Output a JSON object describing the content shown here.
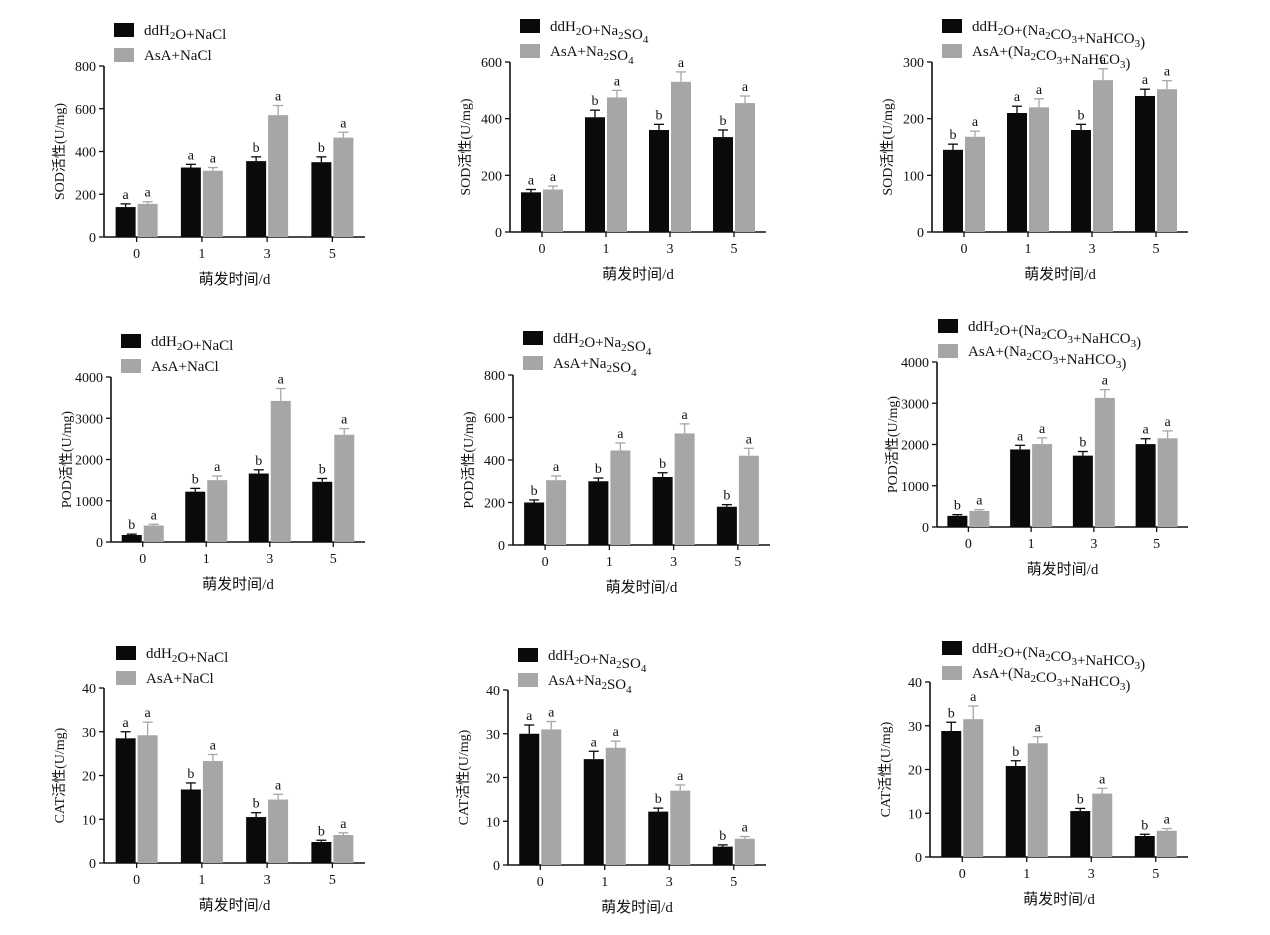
{
  "colors": {
    "black_bar": "#0a0a0a",
    "gray_bar": "#a6a6a6",
    "axis": "#111111"
  },
  "chart_data": [
    {
      "id": "sod-nacl",
      "type": "bar",
      "categories": [
        "0",
        "1",
        "3",
        "5"
      ],
      "xlabel": "萌发时间/d",
      "ylabel": "SOD活性(U/mg)",
      "ylim": [
        0,
        800
      ],
      "yticks": [
        "0",
        "200",
        "400",
        "600",
        "800"
      ],
      "legend_position": "top-left",
      "grid": false,
      "series": [
        {
          "name": "ddH2O+NaCl",
          "color": "#0a0a0a",
          "values": [
            140,
            325,
            355,
            350
          ],
          "errors": [
            15,
            15,
            20,
            25
          ],
          "letters": [
            "a",
            "a",
            "b",
            "b"
          ]
        },
        {
          "name": "AsA+NaCl",
          "color": "#a6a6a6",
          "values": [
            155,
            310,
            570,
            465
          ],
          "errors": [
            10,
            15,
            45,
            25
          ],
          "letters": [
            "a",
            "a",
            "a",
            "a"
          ]
        }
      ]
    },
    {
      "id": "sod-na2so4",
      "type": "bar",
      "categories": [
        "0",
        "1",
        "3",
        "5"
      ],
      "xlabel": "萌发时间/d",
      "ylabel": "SOD活性(U/mg)",
      "ylim": [
        0,
        600
      ],
      "yticks": [
        "0",
        "200",
        "400",
        "600"
      ],
      "legend_position": "top-left",
      "grid": false,
      "series": [
        {
          "name": "ddH2O+Na2SO4",
          "color": "#0a0a0a",
          "values": [
            140,
            405,
            360,
            335
          ],
          "errors": [
            10,
            25,
            20,
            25
          ],
          "letters": [
            "a",
            "b",
            "b",
            "b"
          ]
        },
        {
          "name": "AsA+Na2SO4",
          "color": "#a6a6a6",
          "values": [
            150,
            475,
            530,
            455
          ],
          "errors": [
            12,
            25,
            35,
            25
          ],
          "letters": [
            "a",
            "a",
            "a",
            "a"
          ]
        }
      ]
    },
    {
      "id": "sod-carbonate",
      "type": "bar",
      "categories": [
        "0",
        "1",
        "3",
        "5"
      ],
      "xlabel": "萌发时间/d",
      "ylabel": "SOD活性(U/mg)",
      "ylim": [
        0,
        300
      ],
      "yticks": [
        "0",
        "100",
        "200",
        "300"
      ],
      "legend_position": "top-left",
      "grid": false,
      "series": [
        {
          "name": "ddH2O+(Na2CO3+NaHCO3)",
          "color": "#0a0a0a",
          "values": [
            145,
            210,
            180,
            240
          ],
          "errors": [
            10,
            12,
            10,
            12
          ],
          "letters": [
            "b",
            "a",
            "b",
            "a"
          ]
        },
        {
          "name": "AsA+(Na2CO3+NaHCO3)",
          "color": "#a6a6a6",
          "values": [
            168,
            220,
            268,
            252
          ],
          "errors": [
            10,
            15,
            20,
            15
          ],
          "letters": [
            "a",
            "a",
            "a",
            "a"
          ]
        }
      ]
    },
    {
      "id": "pod-nacl",
      "type": "bar",
      "categories": [
        "0",
        "1",
        "3",
        "5"
      ],
      "xlabel": "萌发时间/d",
      "ylabel": "POD活性(U/mg)",
      "ylim": [
        0,
        4000
      ],
      "yticks": [
        "0",
        "1000",
        "2000",
        "3000",
        "4000"
      ],
      "legend_position": "top-left",
      "grid": false,
      "series": [
        {
          "name": "ddH2O+NaCl",
          "color": "#0a0a0a",
          "values": [
            170,
            1220,
            1660,
            1460
          ],
          "errors": [
            20,
            80,
            90,
            80
          ],
          "letters": [
            "b",
            "b",
            "b",
            "b"
          ]
        },
        {
          "name": "AsA+NaCl",
          "color": "#a6a6a6",
          "values": [
            400,
            1500,
            3420,
            2600
          ],
          "errors": [
            30,
            100,
            300,
            150
          ],
          "letters": [
            "a",
            "a",
            "a",
            "a"
          ]
        }
      ]
    },
    {
      "id": "pod-na2so4",
      "type": "bar",
      "categories": [
        "0",
        "1",
        "3",
        "5"
      ],
      "xlabel": "萌发时间/d",
      "ylabel": "POD活性(U/mg)",
      "ylim": [
        0,
        800
      ],
      "yticks": [
        "0",
        "200",
        "400",
        "600",
        "800"
      ],
      "legend_position": "top-left",
      "grid": false,
      "series": [
        {
          "name": "ddH2O+Na2SO4",
          "color": "#0a0a0a",
          "values": [
            200,
            300,
            320,
            180
          ],
          "errors": [
            12,
            15,
            20,
            10
          ],
          "letters": [
            "b",
            "b",
            "b",
            "b"
          ]
        },
        {
          "name": "AsA+Na2SO4",
          "color": "#a6a6a6",
          "values": [
            305,
            445,
            525,
            420
          ],
          "errors": [
            20,
            35,
            45,
            35
          ],
          "letters": [
            "a",
            "a",
            "a",
            "a"
          ]
        }
      ]
    },
    {
      "id": "pod-carbonate",
      "type": "bar",
      "categories": [
        "0",
        "1",
        "3",
        "5"
      ],
      "xlabel": "萌发时间/d",
      "ylabel": "POD活性(U/mg)",
      "ylim": [
        0,
        4000
      ],
      "yticks": [
        "0",
        "1000",
        "2000",
        "3000",
        "4000"
      ],
      "legend_position": "top-left",
      "grid": false,
      "series": [
        {
          "name": "ddH2O+(Na2CO3+NaHCO3)",
          "color": "#0a0a0a",
          "values": [
            270,
            1880,
            1730,
            2010
          ],
          "errors": [
            30,
            100,
            100,
            130
          ],
          "letters": [
            "b",
            "a",
            "b",
            "a"
          ]
        },
        {
          "name": "AsA+(Na2CO3+NaHCO3)",
          "color": "#a6a6a6",
          "values": [
            390,
            2010,
            3130,
            2150
          ],
          "errors": [
            30,
            150,
            200,
            180
          ],
          "letters": [
            "a",
            "a",
            "a",
            "a"
          ]
        }
      ]
    },
    {
      "id": "cat-nacl",
      "type": "bar",
      "categories": [
        "0",
        "1",
        "3",
        "5"
      ],
      "xlabel": "萌发时间/d",
      "ylabel": "CAT活性(U/mg)",
      "ylim": [
        0,
        40
      ],
      "yticks": [
        "0",
        "10",
        "20",
        "30",
        "40"
      ],
      "legend_position": "top-left",
      "grid": false,
      "series": [
        {
          "name": "ddH2O+NaCl",
          "color": "#0a0a0a",
          "values": [
            28.5,
            16.8,
            10.5,
            4.8
          ],
          "errors": [
            1.5,
            1.5,
            1.0,
            0.4
          ],
          "letters": [
            "a",
            "b",
            "b",
            "b"
          ]
        },
        {
          "name": "AsA+NaCl",
          "color": "#a6a6a6",
          "values": [
            29.2,
            23.3,
            14.5,
            6.4
          ],
          "errors": [
            3.0,
            1.5,
            1.2,
            0.5
          ],
          "letters": [
            "a",
            "a",
            "a",
            "a"
          ]
        }
      ]
    },
    {
      "id": "cat-na2so4",
      "type": "bar",
      "categories": [
        "0",
        "1",
        "3",
        "5"
      ],
      "xlabel": "萌发时间/d",
      "ylabel": "CAT活性(U/mg)",
      "ylim": [
        0,
        40
      ],
      "yticks": [
        "0",
        "10",
        "20",
        "30",
        "40"
      ],
      "legend_position": "top-left",
      "grid": false,
      "series": [
        {
          "name": "ddH2O+Na2SO4",
          "color": "#0a0a0a",
          "values": [
            30.0,
            24.2,
            12.2,
            4.2
          ],
          "errors": [
            2.0,
            1.8,
            0.8,
            0.4
          ],
          "letters": [
            "a",
            "a",
            "b",
            "b"
          ]
        },
        {
          "name": "AsA+Na2SO4",
          "color": "#a6a6a6",
          "values": [
            31.0,
            26.8,
            17.0,
            6.0
          ],
          "errors": [
            1.8,
            1.5,
            1.3,
            0.5
          ],
          "letters": [
            "a",
            "a",
            "a",
            "a"
          ]
        }
      ]
    },
    {
      "id": "cat-carbonate",
      "type": "bar",
      "categories": [
        "0",
        "1",
        "3",
        "5"
      ],
      "xlabel": "萌发时间/d",
      "ylabel": "CAT活性(U/mg)",
      "ylim": [
        0,
        40
      ],
      "yticks": [
        "0",
        "10",
        "20",
        "30",
        "40"
      ],
      "legend_position": "top-left",
      "grid": false,
      "series": [
        {
          "name": "ddH2O+(Na2CO3+NaHCO3)",
          "color": "#0a0a0a",
          "values": [
            28.8,
            20.8,
            10.5,
            4.8
          ],
          "errors": [
            2.0,
            1.2,
            0.6,
            0.4
          ],
          "letters": [
            "b",
            "b",
            "b",
            "b"
          ]
        },
        {
          "name": "AsA+(Na2CO3+NaHCO3)",
          "color": "#a6a6a6",
          "values": [
            31.5,
            26.0,
            14.5,
            6.0
          ],
          "errors": [
            3.0,
            1.5,
            1.2,
            0.5
          ],
          "letters": [
            "a",
            "a",
            "a",
            "a"
          ]
        }
      ]
    }
  ]
}
